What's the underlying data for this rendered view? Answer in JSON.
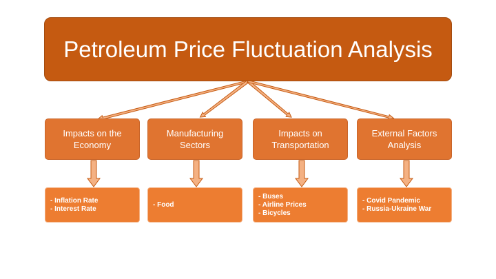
{
  "title": "Petroleum Price Fluctuation Analysis",
  "categories": [
    {
      "line1": "Impacts on the",
      "line2": "Economy",
      "items": [
        "- Inflation Rate",
        "- Interest Rate"
      ]
    },
    {
      "line1": "Manufacturing",
      "line2": "Sectors",
      "items": [
        "- Food"
      ]
    },
    {
      "line1": "Impacts on",
      "line2": "Transportation",
      "items": [
        "- Buses",
        "- Airline Prices",
        "- Bicycles"
      ]
    },
    {
      "line1": "External Factors",
      "line2": "Analysis",
      "items": [
        "- Covid Pandemic",
        "- Russia-Ukraine War"
      ]
    }
  ],
  "colors": {
    "title_fill": "#c55a11",
    "category_fill": "#e07430",
    "list_fill": "#ed7d31",
    "arrow_fill": "#f4b183",
    "arrow_stroke": "#c55a11"
  }
}
